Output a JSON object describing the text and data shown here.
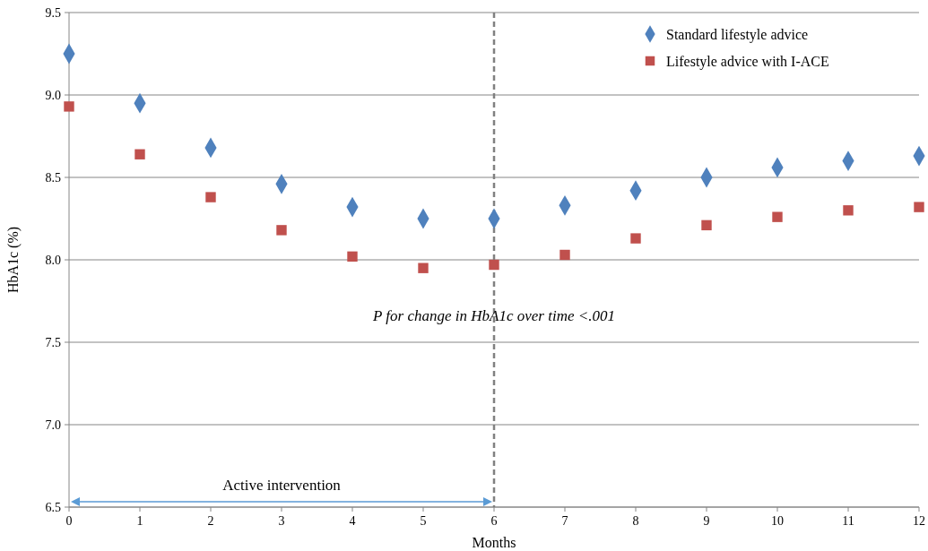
{
  "chart_data": {
    "type": "scatter",
    "xlabel": "Months",
    "ylabel": "HbA1c (%)",
    "x": [
      0,
      1,
      2,
      3,
      4,
      5,
      6,
      7,
      8,
      9,
      10,
      11,
      12
    ],
    "series": [
      {
        "name": "Standard lifestyle advice",
        "color": "#4f81bd",
        "marker": "diamond",
        "values": [
          9.25,
          8.95,
          8.68,
          8.46,
          8.32,
          8.25,
          8.25,
          8.33,
          8.42,
          8.5,
          8.56,
          8.6,
          8.63
        ]
      },
      {
        "name": "Lifestyle advice with I-ACE",
        "color": "#c0504d",
        "marker": "square",
        "values": [
          8.93,
          8.64,
          8.38,
          8.18,
          8.02,
          7.95,
          7.97,
          8.03,
          8.13,
          8.21,
          8.26,
          8.3,
          8.32
        ]
      }
    ],
    "xlim": [
      0,
      12
    ],
    "xticks": [
      0,
      1,
      2,
      3,
      4,
      5,
      6,
      7,
      8,
      9,
      10,
      11,
      12
    ],
    "ylim": [
      6.5,
      9.5
    ],
    "yticks": [
      {
        "value": 6.5,
        "label": "6.5"
      },
      {
        "value": 7,
        "label": "7.0"
      },
      {
        "value": 7.5,
        "label": "7.5"
      },
      {
        "value": 8,
        "label": "8.0"
      },
      {
        "value": 8.5,
        "label": "8.5"
      },
      {
        "value": 9,
        "label": "9.0"
      },
      {
        "value": 9.5,
        "label": "9.5"
      }
    ],
    "grid": "y",
    "legend": "top right",
    "ref_lines": [
      {
        "axis": "x",
        "value": 6,
        "color": "#808080",
        "line_style": "dashed"
      }
    ],
    "annotations": [
      "P for change in HbA1c over time <.001",
      "Active intervention"
    ]
  }
}
